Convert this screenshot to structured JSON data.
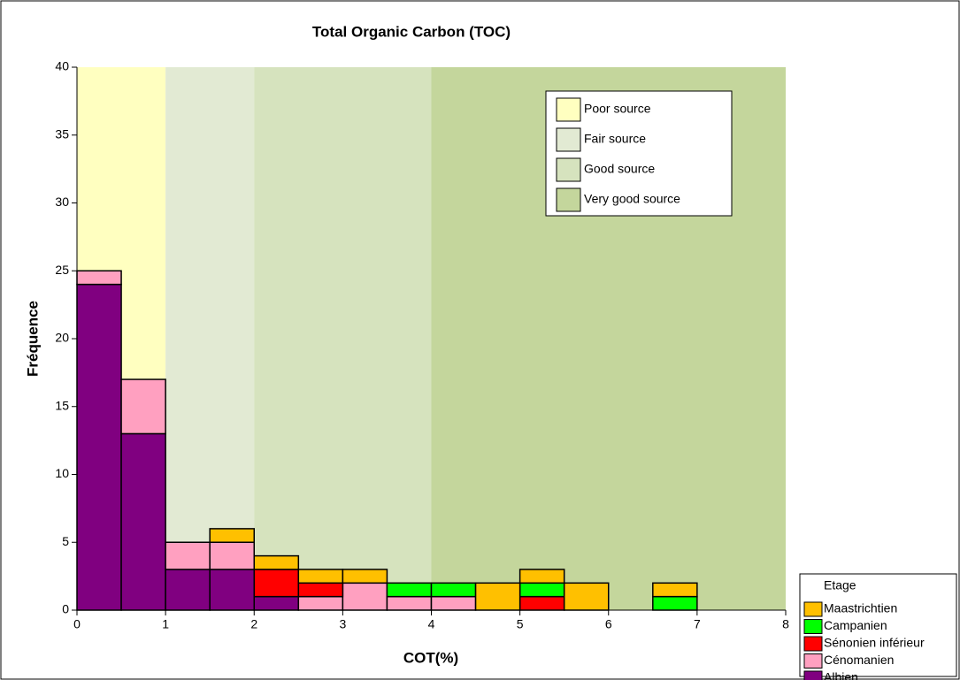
{
  "chart_data": {
    "type": "histogram",
    "title": "Total Organic Carbon (TOC)",
    "x_label": "COT(%)",
    "y_label": "Fréquence",
    "bins": [
      0,
      0.5,
      1,
      1.5,
      2,
      2.5,
      3,
      3.5,
      4,
      4.5,
      5,
      5.5,
      6,
      6.5,
      7,
      7.5,
      8
    ],
    "xlim": [
      0,
      8
    ],
    "xticks": [
      0,
      1,
      2,
      3,
      4,
      5,
      6,
      7,
      8
    ],
    "ylim": [
      0,
      40
    ],
    "yticks": [
      0,
      5,
      10,
      15,
      20,
      25,
      30,
      35,
      40
    ],
    "stacked": true,
    "legend_title": "Etage",
    "legend_position": "lower right",
    "series": [
      {
        "name": "Albien",
        "color": "#800080",
        "values": [
          24,
          13,
          3,
          3,
          1,
          0,
          0,
          0,
          0,
          0,
          0,
          0,
          0,
          0,
          0,
          0
        ]
      },
      {
        "name": "Cénomanien",
        "color": "#ffa0c0",
        "values": [
          1,
          4,
          2,
          2,
          0,
          1,
          2,
          1,
          1,
          0,
          0,
          0,
          0,
          0,
          0,
          0
        ]
      },
      {
        "name": "Sénonien inférieur",
        "color": "#ff0000",
        "values": [
          0,
          0,
          0,
          0,
          2,
          1,
          0,
          0,
          0,
          0,
          1,
          0,
          0,
          0,
          0,
          0
        ]
      },
      {
        "name": "Campanien",
        "color": "#00ff00",
        "values": [
          0,
          0,
          0,
          0,
          0,
          0,
          0,
          1,
          1,
          0,
          1,
          0,
          0,
          1,
          0,
          0
        ]
      },
      {
        "name": "Maastrichtien",
        "color": "#ffc000",
        "values": [
          0,
          0,
          0,
          1,
          1,
          1,
          1,
          0,
          0,
          2,
          1,
          2,
          0,
          1,
          0,
          0
        ]
      }
    ],
    "regions": [
      {
        "name": "Poor source",
        "color": "#ffffc0",
        "range": [
          0,
          1
        ]
      },
      {
        "name": "Fair source",
        "color": "#e2ead3",
        "range": [
          1,
          2
        ]
      },
      {
        "name": "Good source",
        "color": "#d6e3be",
        "range": [
          2,
          4
        ]
      },
      {
        "name": "Very good source",
        "color": "#c4d69c",
        "range": [
          4,
          8
        ]
      }
    ]
  }
}
